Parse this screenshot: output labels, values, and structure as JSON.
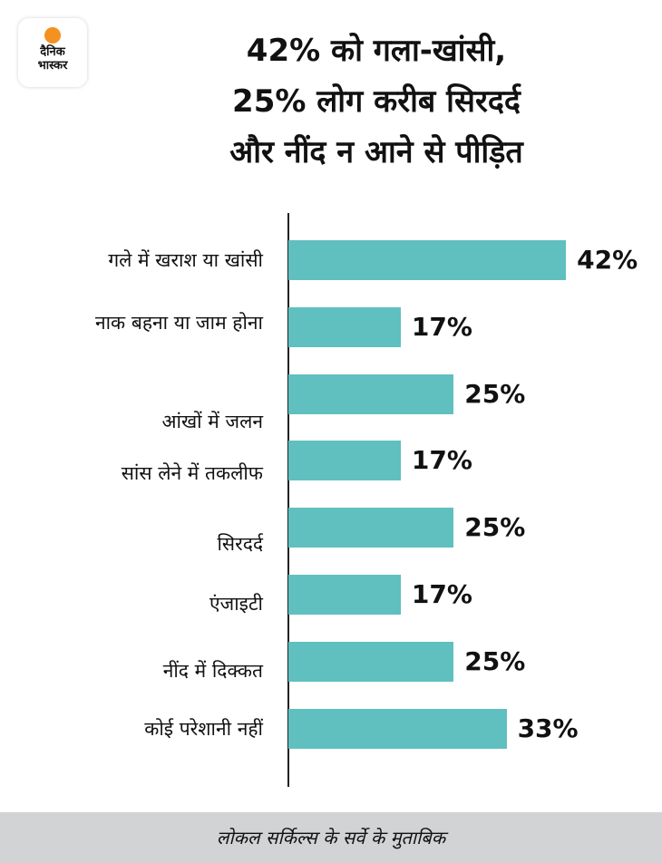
{
  "logo": {
    "line1": "दैनिक",
    "line2": "भास्कर",
    "sun_color": "#f39221"
  },
  "title": [
    "42% को गला-खांसी,",
    "25% लोग करीब सिरदर्द",
    "और नींद न आने से पीड़ित"
  ],
  "chart_data": {
    "type": "bar",
    "orientation": "horizontal",
    "title": "42% को गला-खांसी, 25% लोग करीब सिरदर्द और नींद न आने से पीड़ित",
    "categories": [
      "गले में खराश या खांसी",
      "नाक बहना या जाम होना",
      "आंखों में जलन",
      "सांस लेने में तकलीफ",
      "सिरदर्द",
      "एंजाइटी",
      "नींद में दिक्कत",
      "कोई परेशानी नहीं"
    ],
    "values": [
      42,
      17,
      25,
      17,
      25,
      17,
      25,
      33
    ],
    "labels": [
      "42%",
      "17%",
      "25%",
      "17%",
      "25%",
      "17%",
      "25%",
      "33%"
    ],
    "xlim": [
      0,
      55
    ],
    "bar_color": "#5fc0bf",
    "grid": false
  },
  "footer": "लोकल सर्किल्स के सर्वे के मुताबिक"
}
